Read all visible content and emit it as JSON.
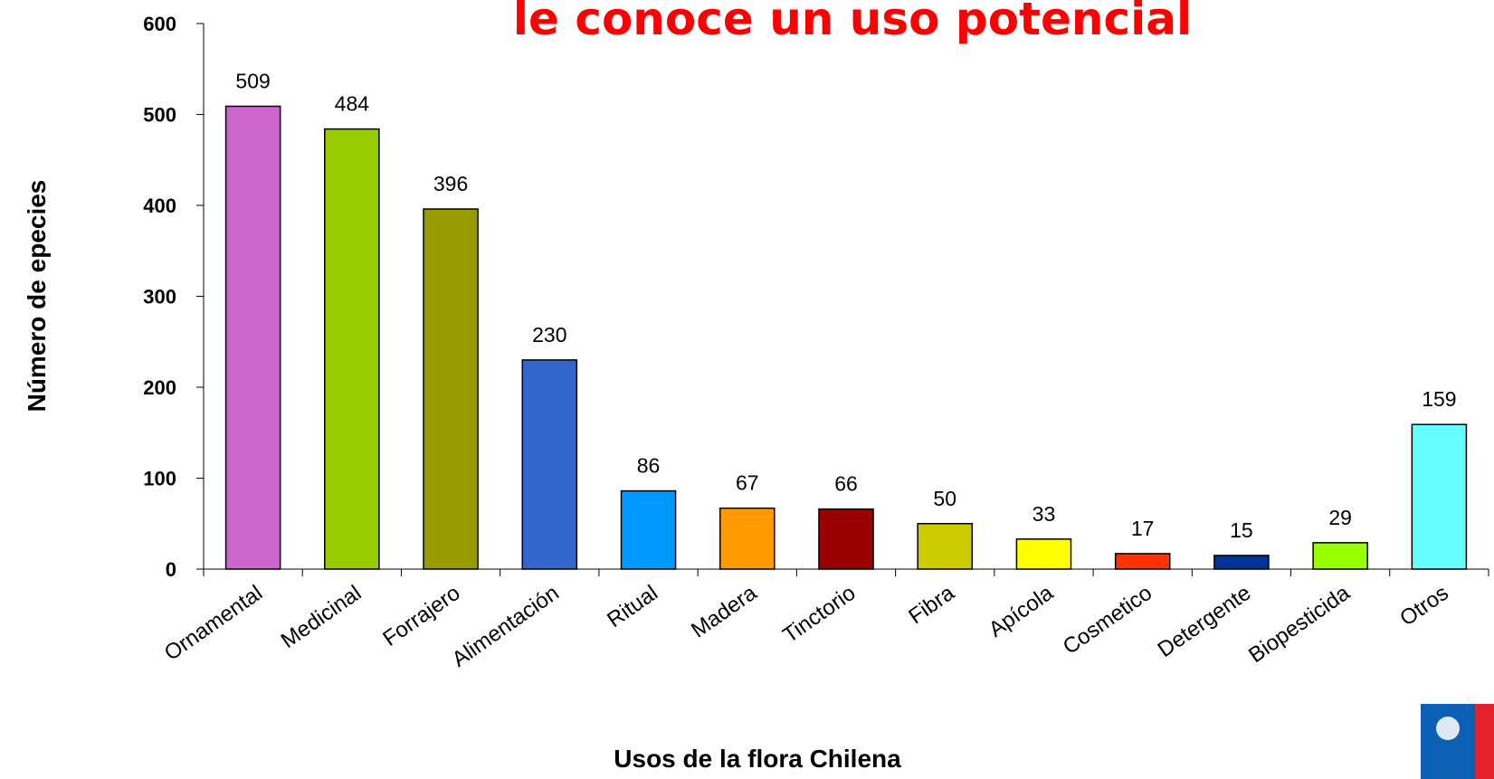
{
  "chart_data": {
    "type": "bar",
    "title": "le conoce un uso potencial",
    "x_label": "Usos de la flora Chilena",
    "y_label": "Número de epecies",
    "categories": [
      "Ornamental",
      "Medicinal",
      "Forrajero",
      "Alimentación",
      "Ritual",
      "Madera",
      "Tinctorio",
      "Fibra",
      "Apícola",
      "Cosmetico",
      "Detergente",
      "Biopesticida",
      "Otros"
    ],
    "values": [
      509,
      484,
      396,
      230,
      86,
      67,
      66,
      50,
      33,
      17,
      15,
      29,
      159
    ],
    "colors": [
      "#cc66cc",
      "#99cc00",
      "#999900",
      "#3366cc",
      "#0099ff",
      "#ff9900",
      "#990000",
      "#cccc00",
      "#ffff00",
      "#ff3300",
      "#003399",
      "#99ff00",
      "#66ffff"
    ],
    "ylim": [
      0,
      600
    ],
    "yticks": [
      0,
      100,
      200,
      300,
      400,
      500,
      600
    ],
    "grid": false
  }
}
